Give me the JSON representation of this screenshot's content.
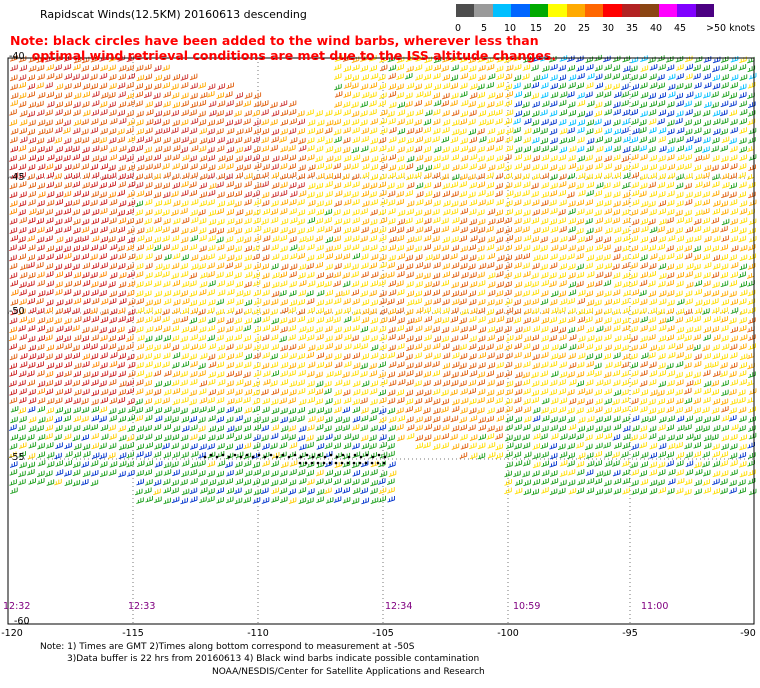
{
  "title": "Rapidscat Winds(12.5KM) 20160613 descending",
  "note_line1": "Note: black circles have been added to the wind barbs, wherever less than",
  "note_line2": "     optimal wind retrieval conditions are met due to the ISS altitude changes.",
  "legend": {
    "labels": [
      "0",
      "5",
      "10",
      "15",
      "20",
      "25",
      "30",
      "35",
      "40",
      "45",
      ">50 knots"
    ],
    "colors": [
      "#4d4d4d",
      "#9a9a9a",
      "#00bfff",
      "#0066ff",
      "#00aa00",
      "#ffff00",
      "#ffaa00",
      "#ff6600",
      "#ff0000",
      "#b22222",
      "#8b4513",
      "#ff00ff",
      "#8000ff",
      "#4b0082"
    ]
  },
  "lat_labels": [
    "-40",
    "-45",
    "-50",
    "-55",
    "-60"
  ],
  "lon_labels": [
    "-120",
    "-115",
    "-110",
    "-105",
    "-100",
    "-95",
    "-90"
  ],
  "times": [
    "12:32",
    "12:33",
    "12:34",
    "10:59",
    "11:00"
  ],
  "footer": {
    "line1": "Note: 1) Times are GMT 2)Times along bottom correspond to measurement at -50S",
    "line2": "3)Data buffer is 22 hrs from 20160613 4) Black wind barbs indicate possible contamination",
    "line3": "NOAA/NESDIS/Center for Satellite Applications and Research"
  }
}
